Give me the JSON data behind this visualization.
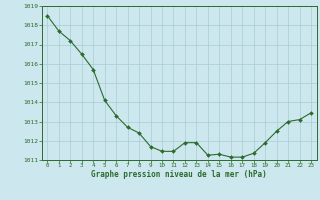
{
  "x": [
    0,
    1,
    2,
    3,
    4,
    5,
    6,
    7,
    8,
    9,
    10,
    11,
    12,
    13,
    14,
    15,
    16,
    17,
    18,
    19,
    20,
    21,
    22,
    23
  ],
  "y": [
    1018.5,
    1017.7,
    1017.2,
    1016.5,
    1015.7,
    1014.1,
    1013.3,
    1012.7,
    1012.4,
    1011.7,
    1011.45,
    1011.45,
    1011.9,
    1011.9,
    1011.25,
    1011.3,
    1011.15,
    1011.15,
    1011.35,
    1011.9,
    1012.5,
    1013.0,
    1013.1,
    1013.45
  ],
  "line_color": "#2d6a2d",
  "marker_color": "#2d6a2d",
  "bg_color": "#cce8ee",
  "grid_color": "#aaccd4",
  "xlabel": "Graphe pression niveau de la mer (hPa)",
  "xlabel_color": "#2d6a2d",
  "tick_color": "#2d6a2d",
  "spine_color": "#2d6a2d",
  "ylim": [
    1011.0,
    1019.0
  ],
  "xlim": [
    -0.5,
    23.5
  ],
  "yticks": [
    1011,
    1012,
    1013,
    1014,
    1015,
    1016,
    1017,
    1018,
    1019
  ],
  "xticks": [
    0,
    1,
    2,
    3,
    4,
    5,
    6,
    7,
    8,
    9,
    10,
    11,
    12,
    13,
    14,
    15,
    16,
    17,
    18,
    19,
    20,
    21,
    22,
    23
  ]
}
